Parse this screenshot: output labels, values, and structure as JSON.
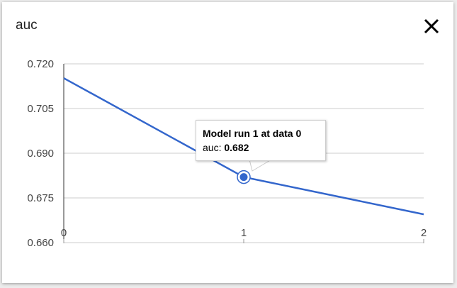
{
  "dialog": {
    "title": "auc",
    "close_icon": "close-icon"
  },
  "tooltip": {
    "heading": "Model run 1 at data 0",
    "label": "auc:",
    "value": "0.682"
  },
  "chart_data": {
    "type": "line",
    "title": "auc",
    "x": [
      0,
      1,
      2
    ],
    "series": [
      {
        "values": [
          0.7152,
          0.682,
          0.6695
        ],
        "color": "#3366cc"
      }
    ],
    "xticks": [
      "0",
      "1",
      "2"
    ],
    "yticks": [
      "0.720",
      "0.705",
      "0.690",
      "0.675",
      "0.660"
    ],
    "xlim": [
      0,
      2
    ],
    "ylim": [
      0.66,
      0.72
    ],
    "grid": true,
    "highlighted_point": 1
  }
}
